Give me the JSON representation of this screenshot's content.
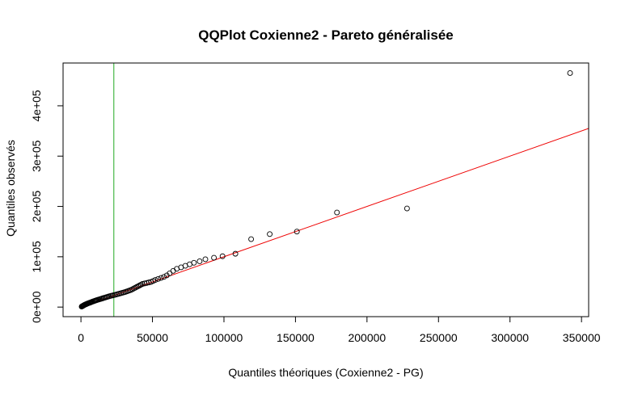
{
  "chart_data": {
    "type": "scatter",
    "title": "QQPlot Coxienne2 - Pareto généralisée",
    "xlabel": "Quantiles théoriques (Coxienne2 - PG)",
    "ylabel": "Quantiles observés",
    "xlim": [
      -12500,
      355000
    ],
    "ylim": [
      -19000,
      485000
    ],
    "x_ticks": [
      0,
      50000,
      100000,
      150000,
      200000,
      250000,
      300000,
      350000
    ],
    "x_tick_labels": [
      "0",
      "50000",
      "100000",
      "150000",
      "200000",
      "250000",
      "300000",
      "350000"
    ],
    "y_ticks": [
      0,
      100000,
      200000,
      300000,
      400000
    ],
    "y_tick_labels": [
      "0e+00",
      "1e+05",
      "2e+05",
      "3e+05",
      "4e+05"
    ],
    "grid": false,
    "reference_line": {
      "slope": 1.0,
      "intercept": 0,
      "color": "#ee0000"
    },
    "threshold_line": {
      "x": 23000,
      "color": "#22aa22"
    },
    "points": {
      "x": [
        500,
        800,
        1100,
        1400,
        1700,
        2000,
        2300,
        2600,
        3000,
        3400,
        3800,
        4200,
        4600,
        5000,
        5500,
        6000,
        6500,
        7000,
        7500,
        8000,
        8600,
        9200,
        9800,
        10400,
        11000,
        11700,
        12400,
        13100,
        13800,
        14500,
        15200,
        16000,
        16800,
        17600,
        18400,
        19200,
        20000,
        21000,
        22000,
        23000,
        24000,
        25000,
        26000,
        27000,
        28000,
        29000,
        30000,
        31000,
        32000,
        33000,
        34000,
        35000,
        36000,
        37000,
        38000,
        39000,
        40000,
        41000,
        42000,
        43000,
        44500,
        46000,
        47500,
        49000,
        50500,
        52000,
        54000,
        56000,
        58000,
        60000,
        62000,
        64500,
        67000,
        70000,
        73000,
        76000,
        79000,
        83000,
        87000,
        93000,
        99000,
        108000,
        119000,
        132000,
        151000,
        179000,
        228000,
        342000
      ],
      "y": [
        1000,
        1500,
        2000,
        2500,
        3000,
        3500,
        4000,
        4500,
        5000,
        5500,
        6000,
        6500,
        7000,
        7500,
        8000,
        8500,
        9000,
        9600,
        10200,
        10800,
        11400,
        12000,
        12600,
        13200,
        13800,
        14400,
        15000,
        15600,
        16200,
        16800,
        17500,
        18200,
        18900,
        19600,
        20300,
        21000,
        21700,
        22400,
        23100,
        23800,
        24500,
        25200,
        26000,
        26800,
        27600,
        28400,
        29200,
        30000,
        31000,
        32000,
        33000,
        34000,
        35500,
        37000,
        38500,
        40000,
        41500,
        43000,
        44500,
        46000,
        47000,
        48000,
        49000,
        50000,
        52000,
        54000,
        56000,
        58000,
        60000,
        63000,
        67000,
        72000,
        76000,
        79000,
        82000,
        85000,
        88000,
        91000,
        95000,
        98000,
        101000,
        106000,
        135000,
        145000,
        150000,
        188000,
        196000,
        465000
      ]
    }
  }
}
